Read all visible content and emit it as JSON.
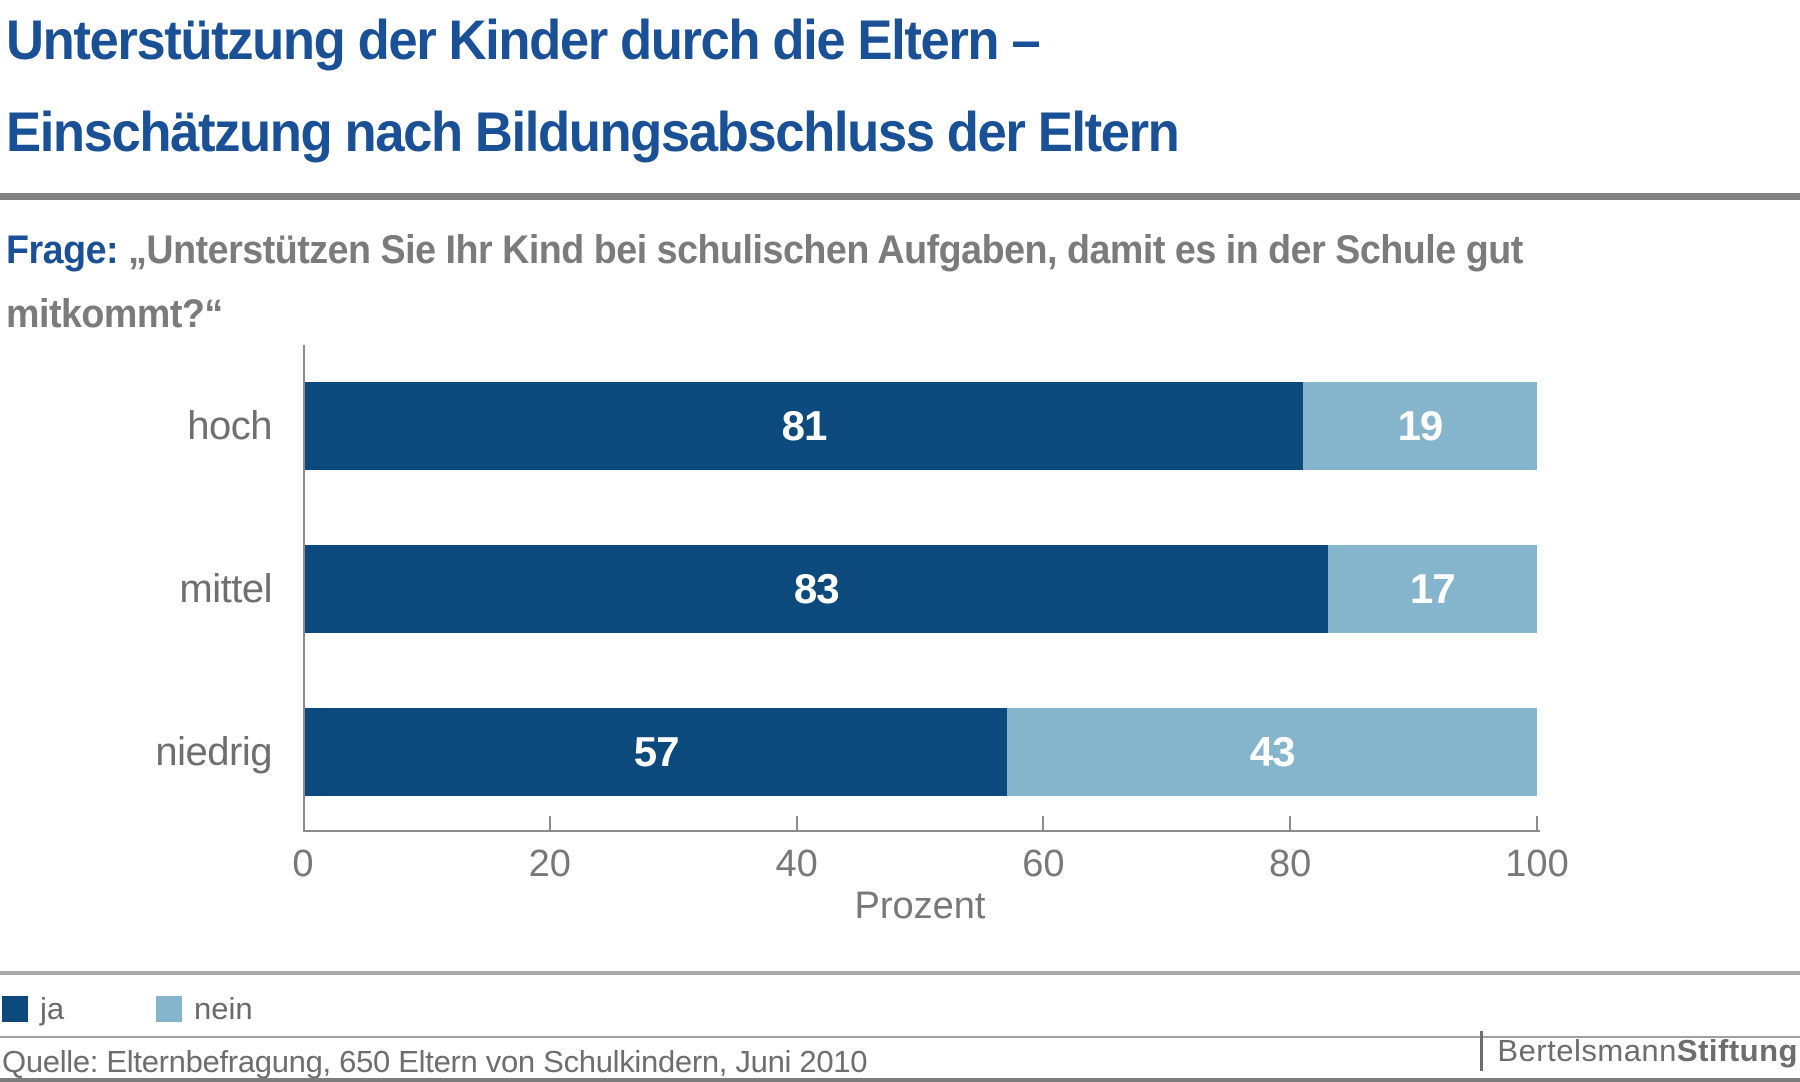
{
  "title": {
    "line1": "Unterstützung der Kinder durch die Eltern –",
    "line2": "Einschätzung nach Bildungsabschluss der Eltern"
  },
  "question": {
    "label": "Frage:",
    "line1": "„Unterstützen Sie Ihr Kind bei schulischen Aufgaben, damit es in der Schule gut",
    "line2": "mitkommt?“"
  },
  "chart_data": {
    "type": "bar",
    "orientation": "horizontal",
    "stacked": true,
    "categories": [
      "hoch",
      "mittel",
      "niedrig"
    ],
    "series": [
      {
        "name": "ja",
        "color": "#0c4a7e",
        "values": [
          81,
          83,
          57
        ]
      },
      {
        "name": "nein",
        "color": "#85b4cd",
        "values": [
          19,
          17,
          43
        ]
      }
    ],
    "xlabel": "Prozent",
    "xlim": [
      0,
      100
    ],
    "xticks": [
      0,
      20,
      40,
      60,
      80,
      100
    ],
    "grid": false,
    "legend_position": "bottom-left",
    "value_labels": "inside-center"
  },
  "source": "Quelle: Elternbefragung, 650 Eltern von Schulkindern, Juni 2010",
  "logo": {
    "part1": "Bertelsmann",
    "part2": "Stiftung"
  },
  "colors": {
    "title_blue": "#1a5096",
    "ja_dark_blue": "#0c4a7e",
    "nein_light_blue": "#85b4cd",
    "text_gray": "#7b7b7b"
  }
}
